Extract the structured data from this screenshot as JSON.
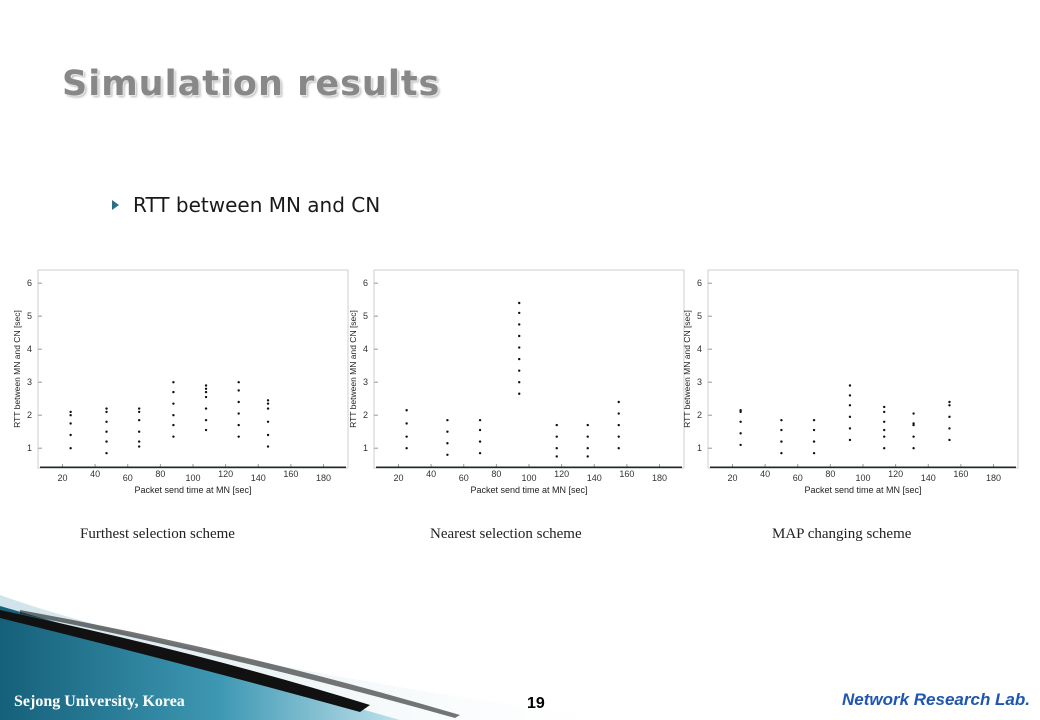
{
  "slide": {
    "title": "Simulation results",
    "bullet": "RTT between MN and CN",
    "page_number": "19",
    "footer_left": "Sejong University, Korea",
    "footer_right": "Network Research Lab."
  },
  "colors": {
    "accent": "#2b6f86",
    "title": "#888888",
    "brand_blue": "#1e56b0",
    "footer_teal": "#1f6f86"
  },
  "chart_data": [
    {
      "type": "scatter",
      "caption": "Furthest selection scheme",
      "xlabel": "Packet send time at MN [sec]",
      "ylabel": "RTT between MN and CN [sec]",
      "x_ticks": [
        20,
        40,
        60,
        80,
        100,
        120,
        140,
        160,
        180
      ],
      "y_ticks": [
        1,
        2,
        3,
        4,
        5,
        6
      ],
      "xlim": [
        5,
        195
      ],
      "ylim": [
        0.4,
        6.4
      ],
      "baseline": 0.42,
      "points": [
        [
          25,
          2.1
        ],
        [
          25,
          2.0
        ],
        [
          25,
          1.75
        ],
        [
          25,
          1.4
        ],
        [
          25,
          1.0
        ],
        [
          47,
          2.2
        ],
        [
          47,
          2.1
        ],
        [
          47,
          1.8
        ],
        [
          47,
          1.5
        ],
        [
          47,
          1.2
        ],
        [
          47,
          0.85
        ],
        [
          67,
          2.2
        ],
        [
          67,
          2.1
        ],
        [
          67,
          1.85
        ],
        [
          67,
          1.5
        ],
        [
          67,
          1.2
        ],
        [
          67,
          1.05
        ],
        [
          88,
          3.0
        ],
        [
          88,
          2.7
        ],
        [
          88,
          2.35
        ],
        [
          88,
          2.0
        ],
        [
          88,
          1.7
        ],
        [
          88,
          1.35
        ],
        [
          108,
          2.9
        ],
        [
          108,
          2.8
        ],
        [
          108,
          2.7
        ],
        [
          108,
          2.55
        ],
        [
          108,
          2.2
        ],
        [
          108,
          1.85
        ],
        [
          108,
          1.55
        ],
        [
          128,
          3.0
        ],
        [
          128,
          2.75
        ],
        [
          128,
          2.4
        ],
        [
          128,
          2.05
        ],
        [
          128,
          1.7
        ],
        [
          128,
          1.35
        ],
        [
          146,
          2.45
        ],
        [
          146,
          2.35
        ],
        [
          146,
          2.2
        ],
        [
          146,
          1.8
        ],
        [
          146,
          1.4
        ],
        [
          146,
          1.05
        ]
      ]
    },
    {
      "type": "scatter",
      "caption": "Nearest selection scheme",
      "xlabel": "Packet send time at MN [sec]",
      "ylabel": "RTT between MN and CN [sec]",
      "x_ticks": [
        20,
        40,
        60,
        80,
        100,
        120,
        140,
        160,
        180
      ],
      "y_ticks": [
        1,
        2,
        3,
        4,
        5,
        6
      ],
      "xlim": [
        5,
        195
      ],
      "ylim": [
        0.4,
        6.4
      ],
      "baseline": 0.42,
      "points": [
        [
          25,
          2.15
        ],
        [
          25,
          1.75
        ],
        [
          25,
          1.35
        ],
        [
          25,
          1.0
        ],
        [
          50,
          1.85
        ],
        [
          50,
          1.5
        ],
        [
          50,
          1.15
        ],
        [
          50,
          0.8
        ],
        [
          70,
          1.85
        ],
        [
          70,
          1.55
        ],
        [
          70,
          1.2
        ],
        [
          70,
          0.85
        ],
        [
          94,
          5.4
        ],
        [
          94,
          5.1
        ],
        [
          94,
          4.75
        ],
        [
          94,
          4.4
        ],
        [
          94,
          4.05
        ],
        [
          94,
          3.7
        ],
        [
          94,
          3.35
        ],
        [
          94,
          3.0
        ],
        [
          94,
          2.65
        ],
        [
          117,
          1.7
        ],
        [
          117,
          1.35
        ],
        [
          117,
          1.0
        ],
        [
          117,
          0.75
        ],
        [
          136,
          1.7
        ],
        [
          136,
          1.35
        ],
        [
          136,
          1.0
        ],
        [
          136,
          0.75
        ],
        [
          155,
          2.4
        ],
        [
          155,
          2.05
        ],
        [
          155,
          1.7
        ],
        [
          155,
          1.35
        ],
        [
          155,
          1.0
        ]
      ]
    },
    {
      "type": "scatter",
      "caption": "MAP changing scheme",
      "xlabel": "Packet send time at MN [sec]",
      "ylabel": "RTT between MN and CN [sec]",
      "x_ticks": [
        20,
        40,
        60,
        80,
        100,
        120,
        140,
        160,
        180
      ],
      "y_ticks": [
        1,
        2,
        3,
        4,
        5,
        6
      ],
      "xlim": [
        5,
        195
      ],
      "ylim": [
        0.4,
        6.4
      ],
      "baseline": 0.42,
      "points": [
        [
          25,
          2.15
        ],
        [
          25,
          2.1
        ],
        [
          25,
          1.8
        ],
        [
          25,
          1.45
        ],
        [
          25,
          1.1
        ],
        [
          50,
          1.85
        ],
        [
          50,
          1.55
        ],
        [
          50,
          1.2
        ],
        [
          50,
          0.85
        ],
        [
          70,
          1.85
        ],
        [
          70,
          1.55
        ],
        [
          70,
          1.2
        ],
        [
          70,
          0.85
        ],
        [
          92,
          2.9
        ],
        [
          92,
          2.6
        ],
        [
          92,
          2.3
        ],
        [
          92,
          1.95
        ],
        [
          92,
          1.6
        ],
        [
          92,
          1.25
        ],
        [
          113,
          2.25
        ],
        [
          113,
          2.1
        ],
        [
          113,
          1.8
        ],
        [
          113,
          1.55
        ],
        [
          113,
          1.35
        ],
        [
          113,
          1.0
        ],
        [
          131,
          2.05
        ],
        [
          131,
          1.75
        ],
        [
          131,
          1.7
        ],
        [
          131,
          1.35
        ],
        [
          131,
          1.0
        ],
        [
          153,
          2.4
        ],
        [
          153,
          2.3
        ],
        [
          153,
          1.95
        ],
        [
          153,
          1.6
        ],
        [
          153,
          1.25
        ]
      ]
    }
  ]
}
